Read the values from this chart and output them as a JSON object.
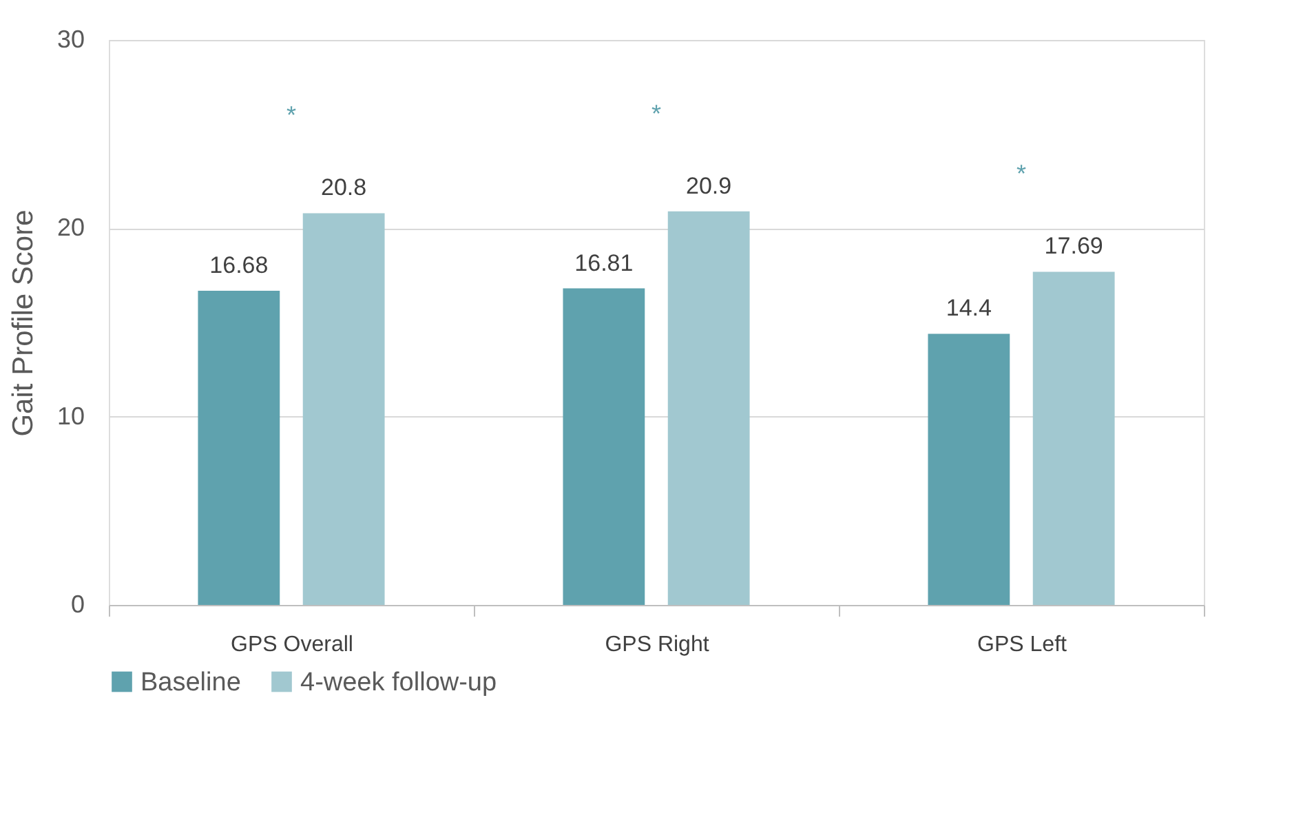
{
  "chart_data": {
    "type": "bar",
    "ylabel": "Gait Profile Score",
    "categories": [
      "GPS Overall",
      "GPS Right",
      "GPS Left"
    ],
    "series": [
      {
        "name": "Baseline",
        "color": "#5fa2ae",
        "values": [
          16.68,
          16.81,
          14.4
        ]
      },
      {
        "name": "4-week follow-up",
        "color": "#a1c8d0",
        "values": [
          20.8,
          20.9,
          17.69
        ]
      }
    ],
    "ylim": [
      0,
      30
    ],
    "yticks": [
      0,
      10,
      20,
      30
    ],
    "grid": "y",
    "legend": "bottom",
    "data_labels": true,
    "annotations": [
      "*",
      "*",
      "*"
    ]
  }
}
